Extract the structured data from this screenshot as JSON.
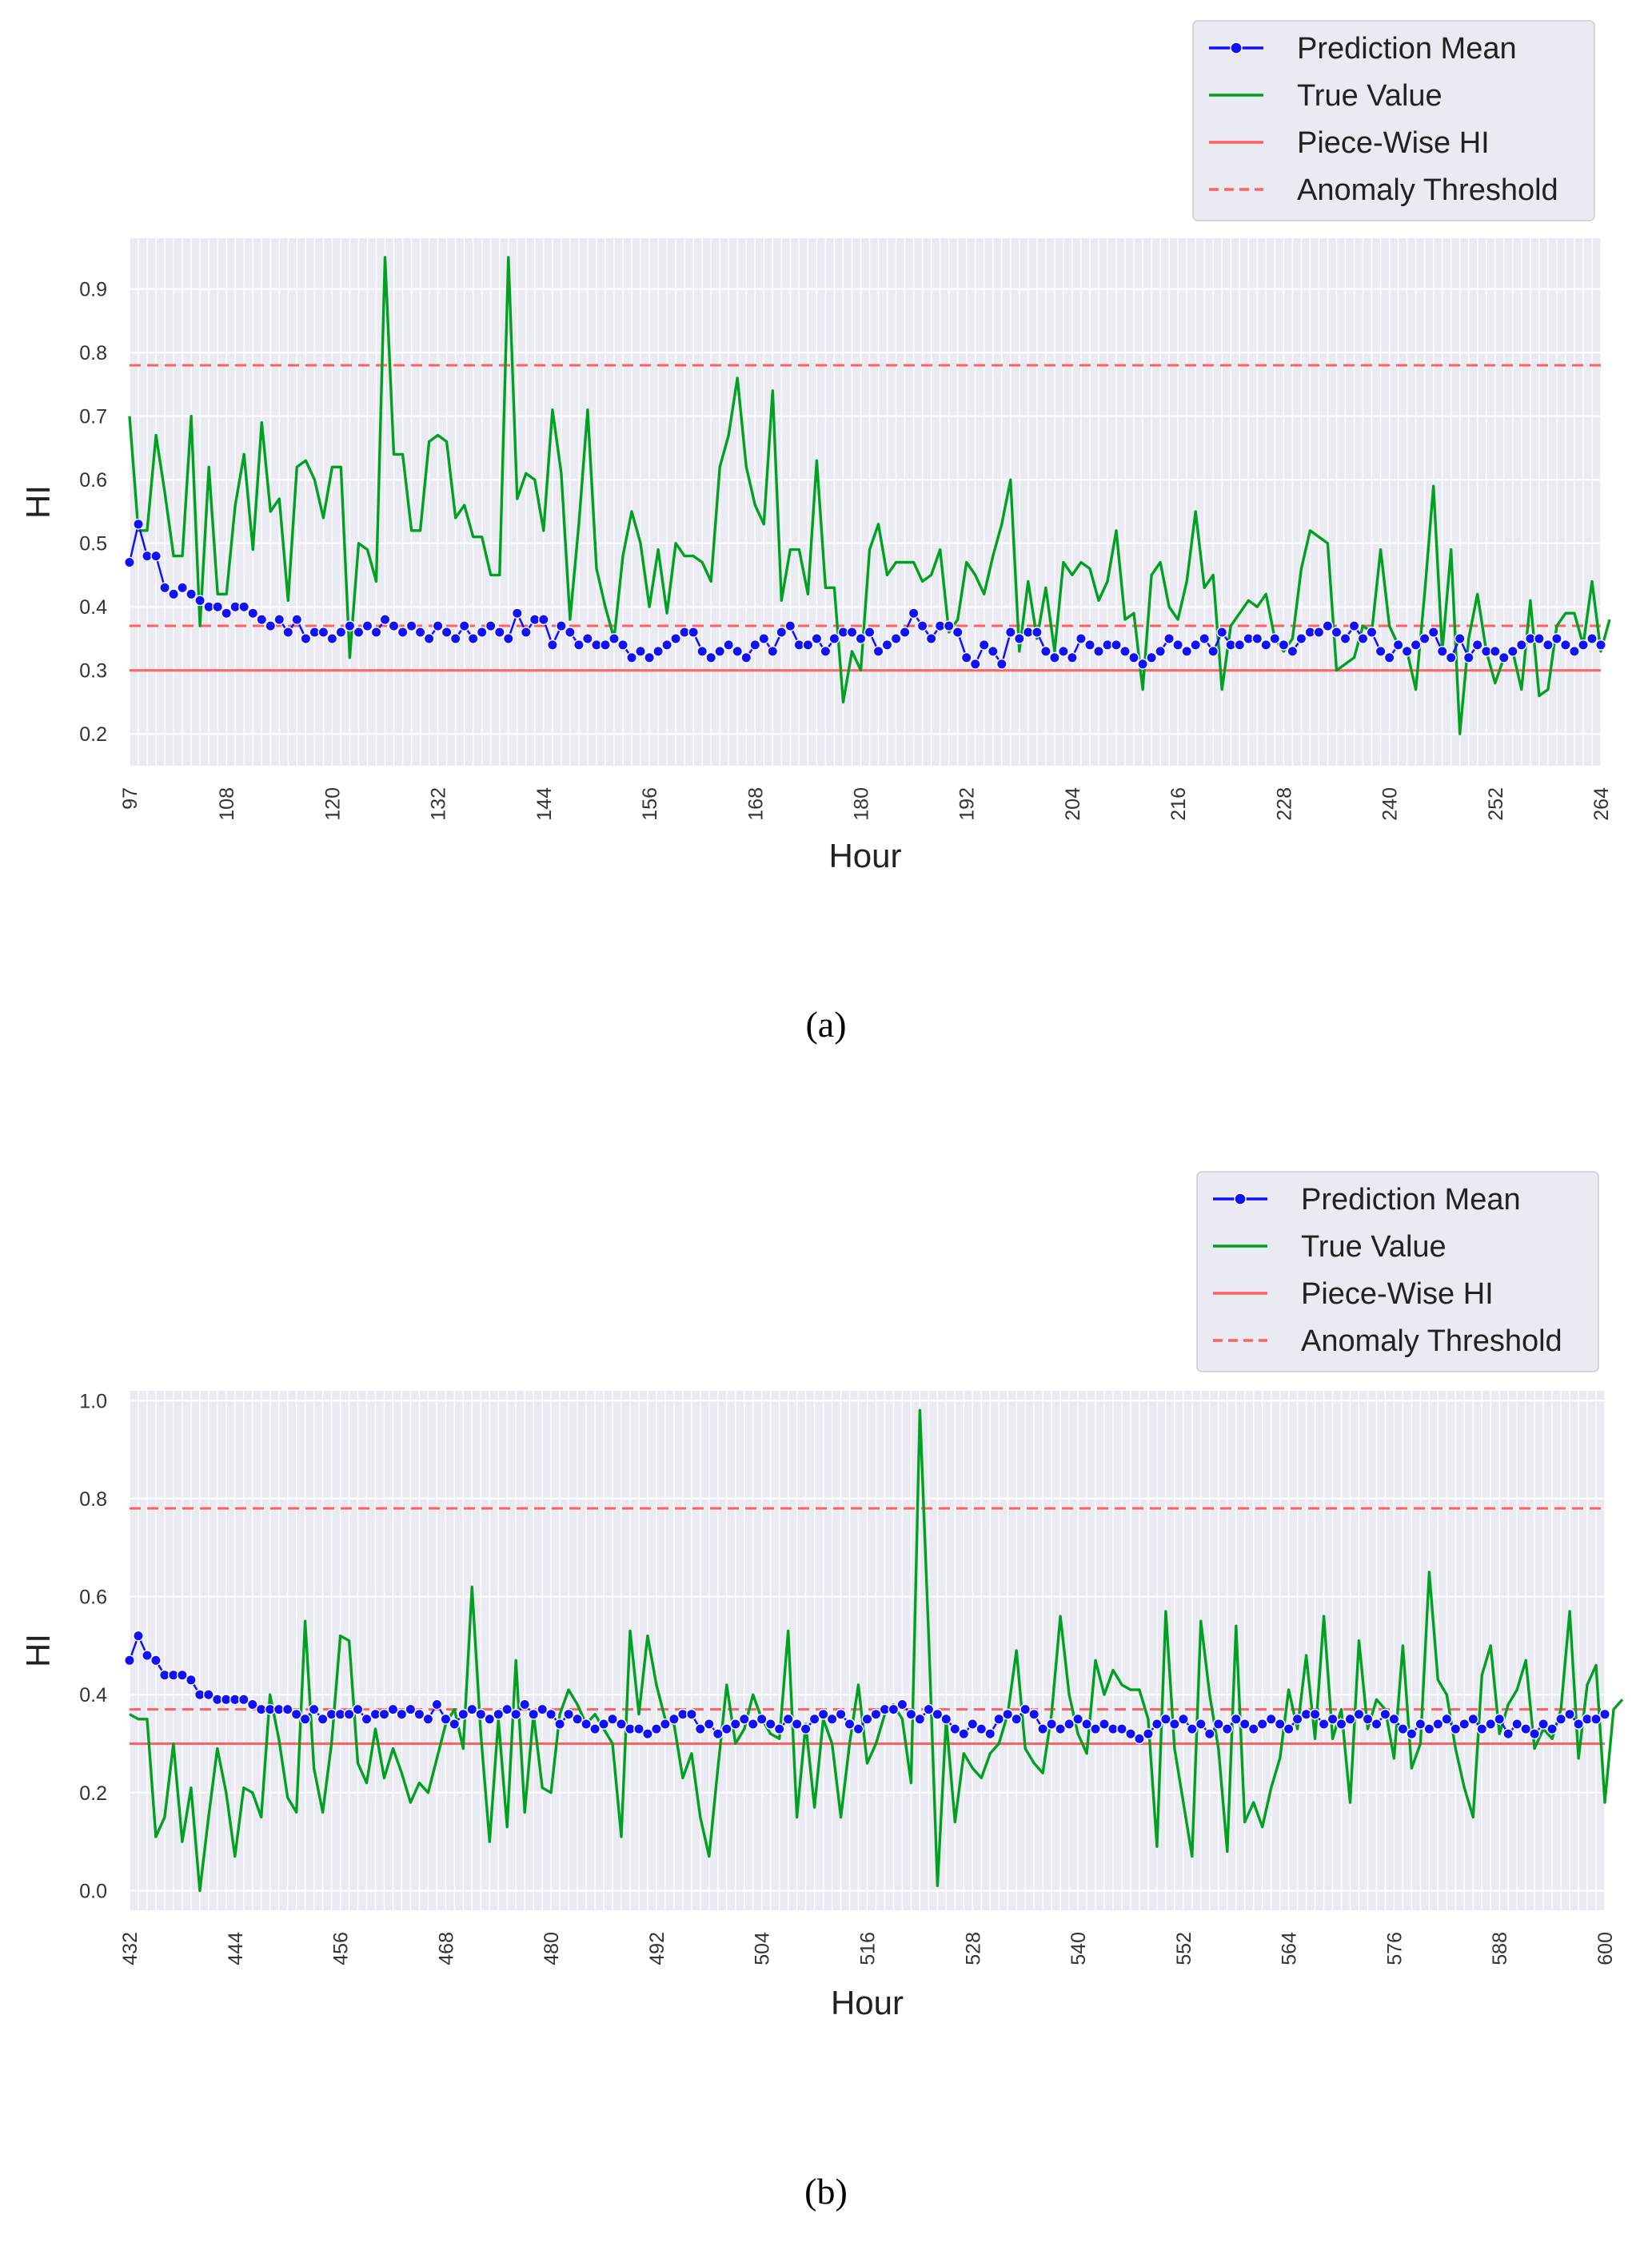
{
  "chart_data": [
    {
      "type": "line",
      "caption": "(a)",
      "xlabel": "Hour",
      "ylabel": "HI",
      "xlim": [
        97,
        264
      ],
      "ylim": [
        0.15,
        0.98
      ],
      "x_ticks": [
        97,
        108,
        120,
        132,
        144,
        156,
        168,
        180,
        192,
        204,
        216,
        228,
        240,
        252,
        264
      ],
      "y_ticks": [
        0.2,
        0.3,
        0.4,
        0.5,
        0.6,
        0.7,
        0.8,
        0.9
      ],
      "y_tick_labels": [
        "0.2",
        "0.3",
        "0.4",
        "0.5",
        "0.6",
        "0.7",
        "0.8",
        "0.9"
      ],
      "grid": true,
      "legend_position": "top-right, above the plot",
      "legend": [
        "Prediction Mean",
        "True Value",
        "Piece-Wise HI",
        "Anomaly Threshold"
      ],
      "series": [
        {
          "name": "Prediction Mean",
          "color": "#1010ff",
          "style": "line with circle markers",
          "x_start": 97,
          "x_step": 1,
          "values": [
            0.47,
            0.53,
            0.48,
            0.48,
            0.43,
            0.42,
            0.43,
            0.42,
            0.41,
            0.4,
            0.4,
            0.39,
            0.4,
            0.4,
            0.39,
            0.38,
            0.37,
            0.38,
            0.36,
            0.38,
            0.35,
            0.36,
            0.36,
            0.35,
            0.36,
            0.37,
            0.36,
            0.37,
            0.36,
            0.38,
            0.37,
            0.36,
            0.37,
            0.36,
            0.35,
            0.37,
            0.36,
            0.35,
            0.37,
            0.35,
            0.36,
            0.37,
            0.36,
            0.35,
            0.39,
            0.36,
            0.38,
            0.38,
            0.34,
            0.37,
            0.36,
            0.34,
            0.35,
            0.34,
            0.34,
            0.35,
            0.34,
            0.32,
            0.33,
            0.32,
            0.33,
            0.34,
            0.35,
            0.36,
            0.36,
            0.33,
            0.32,
            0.33,
            0.34,
            0.33,
            0.32,
            0.34,
            0.35,
            0.33,
            0.36,
            0.37,
            0.34,
            0.34,
            0.35,
            0.33,
            0.35,
            0.36,
            0.36,
            0.35,
            0.36,
            0.33,
            0.34,
            0.35,
            0.36,
            0.39,
            0.37,
            0.35,
            0.37,
            0.37,
            0.36,
            0.32,
            0.31,
            0.34,
            0.33,
            0.31,
            0.36,
            0.35,
            0.36,
            0.36,
            0.33,
            0.32,
            0.33,
            0.32,
            0.35,
            0.34,
            0.33,
            0.34,
            0.34,
            0.33,
            0.32,
            0.31,
            0.32,
            0.33,
            0.35,
            0.34,
            0.33,
            0.34,
            0.35,
            0.33,
            0.36,
            0.34,
            0.34,
            0.35,
            0.35,
            0.34,
            0.35,
            0.34,
            0.33,
            0.35,
            0.36,
            0.36,
            0.37,
            0.36,
            0.35,
            0.37,
            0.35,
            0.36,
            0.33,
            0.32,
            0.34,
            0.33,
            0.34,
            0.35,
            0.36,
            0.33,
            0.32,
            0.35,
            0.32,
            0.34,
            0.33,
            0.33,
            0.32,
            0.33,
            0.34,
            0.35,
            0.35,
            0.34,
            0.35,
            0.34,
            0.33,
            0.34,
            0.35,
            0.34
          ]
        },
        {
          "name": "True Value",
          "color": "#00a020",
          "style": "line",
          "x_start": 97,
          "x_step": 1,
          "values": [
            0.7,
            0.52,
            0.52,
            0.67,
            0.58,
            0.48,
            0.48,
            0.7,
            0.37,
            0.62,
            0.42,
            0.42,
            0.56,
            0.64,
            0.49,
            0.69,
            0.55,
            0.57,
            0.41,
            0.62,
            0.63,
            0.6,
            0.54,
            0.62,
            0.62,
            0.32,
            0.5,
            0.49,
            0.44,
            0.95,
            0.64,
            0.64,
            0.52,
            0.52,
            0.66,
            0.67,
            0.66,
            0.54,
            0.56,
            0.51,
            0.51,
            0.45,
            0.45,
            0.95,
            0.57,
            0.61,
            0.6,
            0.52,
            0.71,
            0.61,
            0.38,
            0.53,
            0.71,
            0.46,
            0.4,
            0.35,
            0.48,
            0.55,
            0.5,
            0.4,
            0.49,
            0.39,
            0.5,
            0.48,
            0.48,
            0.47,
            0.44,
            0.62,
            0.67,
            0.76,
            0.62,
            0.56,
            0.53,
            0.74,
            0.41,
            0.49,
            0.49,
            0.42,
            0.63,
            0.43,
            0.43,
            0.25,
            0.33,
            0.3,
            0.49,
            0.53,
            0.45,
            0.47,
            0.47,
            0.47,
            0.44,
            0.45,
            0.49,
            0.36,
            0.38,
            0.47,
            0.45,
            0.42,
            0.48,
            0.53,
            0.6,
            0.33,
            0.44,
            0.35,
            0.43,
            0.33,
            0.47,
            0.45,
            0.47,
            0.46,
            0.41,
            0.44,
            0.52,
            0.38,
            0.39,
            0.27,
            0.45,
            0.47,
            0.4,
            0.38,
            0.44,
            0.55,
            0.43,
            0.45,
            0.27,
            0.37,
            0.39,
            0.41,
            0.4,
            0.42,
            0.35,
            0.33,
            0.35,
            0.46,
            0.52,
            0.51,
            0.5,
            0.3,
            0.31,
            0.32,
            0.37,
            0.36,
            0.49,
            0.37,
            0.34,
            0.33,
            0.27,
            0.42,
            0.59,
            0.33,
            0.49,
            0.2,
            0.35,
            0.42,
            0.33,
            0.28,
            0.32,
            0.33,
            0.27,
            0.41,
            0.26,
            0.27,
            0.37,
            0.39,
            0.39,
            0.34,
            0.44,
            0.33,
            0.38
          ]
        },
        {
          "name": "Piece-Wise HI",
          "color": "#ff6060",
          "style": "solid horizontal line",
          "value": 0.3
        },
        {
          "name": "Anomaly Threshold",
          "color": "#ff6060",
          "style": "dashed horizontal lines",
          "values": [
            0.37,
            0.78
          ]
        }
      ]
    },
    {
      "type": "line",
      "caption": "(b)",
      "xlabel": "Hour",
      "ylabel": "HI",
      "xlim": [
        432,
        600
      ],
      "ylim": [
        -0.04,
        1.02
      ],
      "x_ticks": [
        432,
        444,
        456,
        468,
        480,
        492,
        504,
        516,
        528,
        540,
        552,
        564,
        576,
        588,
        600
      ],
      "y_ticks": [
        0.0,
        0.2,
        0.4,
        0.6,
        0.8,
        1.0
      ],
      "y_tick_labels": [
        "0.0",
        "0.2",
        "0.4",
        "0.6",
        "0.8",
        "1.0"
      ],
      "grid": true,
      "legend_position": "top-right, above the plot",
      "legend": [
        "Prediction Mean",
        "True Value",
        "Piece-Wise HI",
        "Anomaly Threshold"
      ],
      "series": [
        {
          "name": "Prediction Mean",
          "color": "#1010ff",
          "style": "line with circle markers",
          "x_start": 432,
          "x_step": 1,
          "values": [
            0.47,
            0.52,
            0.48,
            0.47,
            0.44,
            0.44,
            0.44,
            0.43,
            0.4,
            0.4,
            0.39,
            0.39,
            0.39,
            0.39,
            0.38,
            0.37,
            0.37,
            0.37,
            0.37,
            0.36,
            0.35,
            0.37,
            0.35,
            0.36,
            0.36,
            0.36,
            0.37,
            0.35,
            0.36,
            0.36,
            0.37,
            0.36,
            0.37,
            0.36,
            0.35,
            0.38,
            0.35,
            0.34,
            0.36,
            0.37,
            0.36,
            0.35,
            0.36,
            0.37,
            0.36,
            0.38,
            0.36,
            0.37,
            0.36,
            0.34,
            0.36,
            0.35,
            0.34,
            0.33,
            0.34,
            0.35,
            0.34,
            0.33,
            0.33,
            0.32,
            0.33,
            0.34,
            0.35,
            0.36,
            0.36,
            0.33,
            0.34,
            0.32,
            0.33,
            0.34,
            0.35,
            0.34,
            0.35,
            0.34,
            0.33,
            0.35,
            0.34,
            0.33,
            0.35,
            0.36,
            0.35,
            0.36,
            0.34,
            0.33,
            0.35,
            0.36,
            0.37,
            0.37,
            0.38,
            0.36,
            0.35,
            0.37,
            0.36,
            0.35,
            0.33,
            0.32,
            0.34,
            0.33,
            0.32,
            0.35,
            0.36,
            0.35,
            0.37,
            0.36,
            0.33,
            0.34,
            0.33,
            0.34,
            0.35,
            0.34,
            0.33,
            0.34,
            0.33,
            0.33,
            0.32,
            0.31,
            0.32,
            0.34,
            0.35,
            0.34,
            0.35,
            0.33,
            0.34,
            0.32,
            0.34,
            0.33,
            0.35,
            0.34,
            0.33,
            0.34,
            0.35,
            0.34,
            0.33,
            0.35,
            0.36,
            0.36,
            0.34,
            0.35,
            0.34,
            0.35,
            0.36,
            0.35,
            0.34,
            0.36,
            0.35,
            0.33,
            0.32,
            0.34,
            0.33,
            0.34,
            0.35,
            0.33,
            0.34,
            0.35,
            0.33,
            0.34,
            0.35,
            0.32,
            0.34,
            0.33,
            0.32,
            0.34,
            0.33,
            0.35,
            0.36,
            0.34,
            0.35,
            0.35,
            0.36
          ]
        },
        {
          "name": "True Value",
          "color": "#00a020",
          "style": "line",
          "x_start": 432,
          "x_step": 1,
          "values": [
            0.36,
            0.35,
            0.35,
            0.11,
            0.15,
            0.3,
            0.1,
            0.21,
            0.0,
            0.15,
            0.29,
            0.2,
            0.07,
            0.21,
            0.2,
            0.15,
            0.4,
            0.31,
            0.19,
            0.16,
            0.55,
            0.25,
            0.16,
            0.3,
            0.52,
            0.51,
            0.26,
            0.22,
            0.33,
            0.23,
            0.29,
            0.24,
            0.18,
            0.22,
            0.2,
            0.27,
            0.34,
            0.37,
            0.29,
            0.62,
            0.32,
            0.1,
            0.35,
            0.13,
            0.47,
            0.16,
            0.36,
            0.21,
            0.2,
            0.36,
            0.41,
            0.38,
            0.34,
            0.36,
            0.33,
            0.3,
            0.11,
            0.53,
            0.36,
            0.52,
            0.42,
            0.35,
            0.34,
            0.23,
            0.28,
            0.15,
            0.07,
            0.25,
            0.42,
            0.3,
            0.33,
            0.4,
            0.35,
            0.32,
            0.31,
            0.53,
            0.15,
            0.34,
            0.17,
            0.35,
            0.3,
            0.15,
            0.3,
            0.42,
            0.26,
            0.3,
            0.36,
            0.38,
            0.35,
            0.22,
            0.98,
            0.52,
            0.01,
            0.35,
            0.14,
            0.28,
            0.25,
            0.23,
            0.28,
            0.3,
            0.36,
            0.49,
            0.29,
            0.26,
            0.24,
            0.36,
            0.56,
            0.4,
            0.32,
            0.28,
            0.47,
            0.4,
            0.45,
            0.42,
            0.41,
            0.41,
            0.35,
            0.09,
            0.57,
            0.29,
            0.18,
            0.07,
            0.55,
            0.4,
            0.29,
            0.08,
            0.54,
            0.14,
            0.18,
            0.13,
            0.21,
            0.27,
            0.41,
            0.33,
            0.48,
            0.31,
            0.56,
            0.31,
            0.37,
            0.18,
            0.51,
            0.33,
            0.39,
            0.37,
            0.27,
            0.5,
            0.25,
            0.3,
            0.65,
            0.43,
            0.4,
            0.29,
            0.21,
            0.15,
            0.44,
            0.5,
            0.32,
            0.38,
            0.41,
            0.47,
            0.29,
            0.33,
            0.31,
            0.37,
            0.57,
            0.27,
            0.42,
            0.46,
            0.18,
            0.37,
            0.39
          ]
        },
        {
          "name": "Piece-Wise HI",
          "color": "#ff6060",
          "style": "solid horizontal line",
          "value": 0.3
        },
        {
          "name": "Anomaly Threshold",
          "color": "#ff6060",
          "style": "dashed horizontal lines",
          "values": [
            0.37,
            0.78
          ]
        }
      ]
    }
  ],
  "colors": {
    "plot_background": "#eaeaf2",
    "grid": "#ffffff",
    "legend_background": "#eaeaf2",
    "legend_border": "#cccccc"
  }
}
